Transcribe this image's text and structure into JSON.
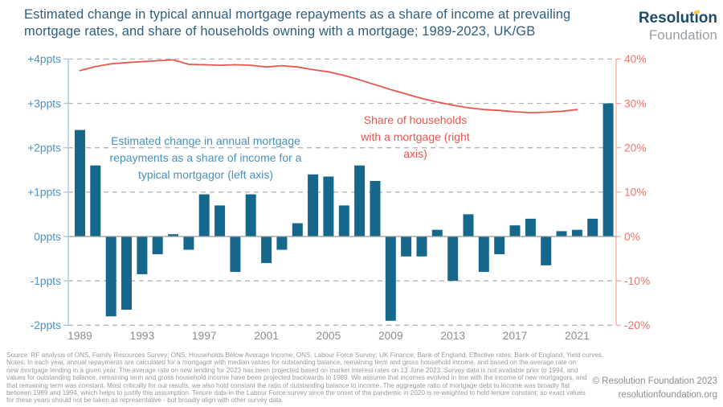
{
  "header": {
    "title_line1": "Estimated change in typical annual mortgage repayments as a share of income at prevailing",
    "title_line2": "mortgage rates, and share of households owning with a mortgage; 1989-2023, UK/GB",
    "logo_line1": "Resolution",
    "logo_line2": "Foundation"
  },
  "annotations": {
    "bar_label": "Estimated change in annual mortgage\nrepayments as a share of income for a\ntypical mortgagor (left axis)",
    "line_label": "Share of households\nwith a mortgage (right\naxis)"
  },
  "chart_data": {
    "type": "bar+line (dual axis)",
    "x": [
      1989,
      1990,
      1991,
      1992,
      1993,
      1994,
      1995,
      1996,
      1997,
      1998,
      1999,
      2000,
      2001,
      2002,
      2003,
      2004,
      2005,
      2006,
      2007,
      2008,
      2009,
      2010,
      2011,
      2012,
      2013,
      2014,
      2015,
      2016,
      2017,
      2018,
      2019,
      2020,
      2021,
      2022,
      2023
    ],
    "series": [
      {
        "name": "Estimated change in annual mortgage repayments as a share of income for a typical mortgagor",
        "type": "bar",
        "axis": "left",
        "unit": "ppts",
        "values": [
          2.4,
          1.6,
          -1.8,
          -1.65,
          -0.85,
          -0.4,
          0.05,
          -0.3,
          0.95,
          0.7,
          -0.8,
          0.95,
          -0.6,
          -0.3,
          0.3,
          1.4,
          1.35,
          0.7,
          1.6,
          1.25,
          -1.9,
          -0.45,
          -0.45,
          0.15,
          -1.0,
          0.5,
          -0.8,
          -0.4,
          0.25,
          0.4,
          -0.65,
          0.12,
          0.15,
          0.4,
          3.0
        ]
      },
      {
        "name": "Share of households with a mortgage",
        "type": "line",
        "axis": "right",
        "unit": "%",
        "values": [
          37.4,
          38.3,
          38.9,
          39.2,
          39.4,
          39.6,
          39.8,
          38.8,
          38.7,
          38.6,
          38.7,
          38.6,
          38.2,
          38.5,
          38.2,
          37.6,
          37.1,
          36.3,
          35.3,
          34.2,
          33.1,
          32.1,
          31.1,
          30.3,
          29.6,
          29.0,
          28.6,
          28.4,
          28.1,
          27.9,
          28.0,
          28.2,
          28.6,
          null,
          null
        ]
      }
    ],
    "left_axis": {
      "tick_labels": [
        "+4ppts",
        "+3ppts",
        "+2ppts",
        "+1ppts",
        "0ppts",
        "-1ppts",
        "-2ppts"
      ],
      "tick_values": [
        4,
        3,
        2,
        1,
        0,
        -1,
        -2
      ],
      "range": [
        -2,
        4
      ]
    },
    "right_axis": {
      "tick_labels": [
        "40%",
        "30%",
        "20%",
        "10%",
        "0%",
        "-10%",
        "-20%"
      ],
      "tick_values": [
        40,
        30,
        20,
        10,
        0,
        -10,
        -20
      ],
      "range": [
        -20,
        40
      ]
    },
    "x_tick_labels": [
      "1989",
      "1993",
      "1997",
      "2001",
      "2005",
      "2009",
      "2013",
      "2017",
      "2021"
    ],
    "x_tick_years": [
      1989,
      1993,
      1997,
      2001,
      2005,
      2009,
      2013,
      2017,
      2021
    ],
    "grid": "horizontal dashed",
    "legend_position": "in-plot annotations"
  },
  "colors": {
    "bar": "#15678c",
    "line": "#e9564e",
    "left_axis": "#a9cde2",
    "left_label": "#4d93bf",
    "right_axis": "#f5a59e",
    "right_label": "#ee756b",
    "x_label": "#8d8d8d",
    "grid": "#b5b5b5",
    "zero_line": "#9b9b9b",
    "title": "#2f5e7e",
    "annotation_blue": "#4a90bc",
    "annotation_red": "#e9564e",
    "logo_navy": "#1f4a63",
    "logo_gray": "#9aa0a3",
    "logo_yellow": "#f6c54a",
    "footer_gray": "#9b9b9b"
  },
  "footer": {
    "lines": [
      "Source: RF analysis of ONS, Family Resources Survey; ONS, Households Below Average Income; ONS, Labour Force Survey; UK Finance; Bank of England, Effective rates; Bank of England, Yield curves.",
      "Notes: In each year, annual repayments are calculated for a mortgagor with median values for outstanding balance, remaining term and gross household income, and based on the average rate on",
      "new mortgage lending in a given year. The average rate on new lending for 2023 has been projected based on market interest rates on 13 June 2023. Survey data is not available prior to 1994, and",
      "values for outstanding balance, remaining term and gross household income have been projected backwards to 1989. We assume that incomes evolved in line with the income of new mortgagors, and",
      "that remaining term was constant. Most critically for our results, we also hold constant the ratio of outstanding balance to income. The aggregate ratio of mortgage debt to income was broadly flat",
      "between 1989 and 1994, which helps to justify this assumption. Tenure data in the Labour Force survey since the onset of the pandemic in 2020 is re-weighted to hold tenure constant, so exact values",
      "for these years should not be taken as representative - but broadly align with other survey data."
    ],
    "copyright": "© Resolution Foundation 2023",
    "website": "resolutionfoundation.org"
  }
}
